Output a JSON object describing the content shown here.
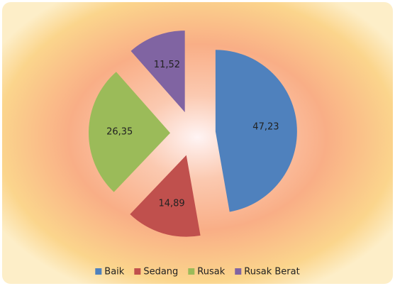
{
  "chart_data": {
    "type": "pie",
    "categories": [
      "Baik",
      "Sedang",
      "Rusak",
      "Rusak Berat"
    ],
    "values": [
      47.23,
      14.89,
      26.35,
      11.52
    ],
    "value_labels": [
      "47,23",
      "14,89",
      "26,35",
      "11,52"
    ],
    "colors": [
      "#4f81bd",
      "#c0504d",
      "#9bbb59",
      "#8064a2"
    ],
    "legend": "bottom"
  }
}
